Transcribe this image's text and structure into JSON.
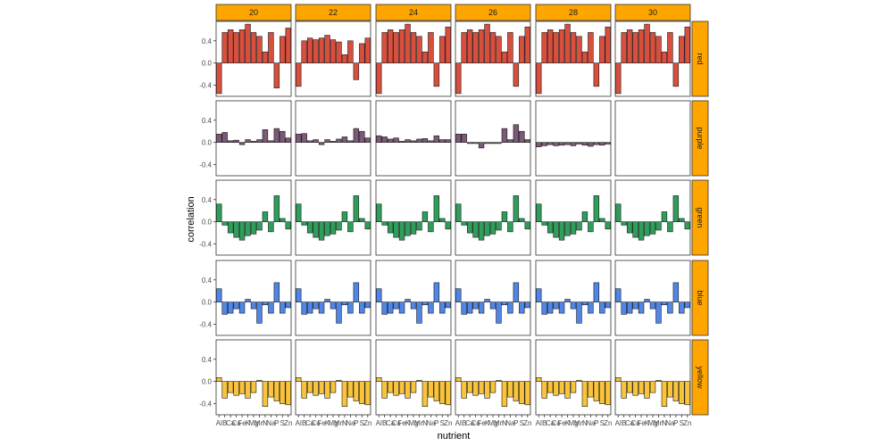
{
  "chart_data": {
    "type": "bar",
    "xlabel": "nutrient",
    "ylabel": "correlation",
    "ylim": [
      -0.6,
      0.75
    ],
    "yticks": [
      -0.4,
      0.0,
      0.4
    ],
    "ytick_labels": [
      "-0.4",
      "0.0",
      "0.4"
    ],
    "categories": [
      "Al",
      "B",
      "Ca",
      "Cu",
      "Fe",
      "K",
      "Mg",
      "Mn",
      "N",
      "Na",
      "P",
      "S",
      "Zn"
    ],
    "xtick_labels": [
      "Al",
      "B",
      "Ca",
      "Cu",
      "Fe",
      "K",
      "Mg",
      "Mn",
      "N",
      "Na",
      "P",
      "S",
      "Zn"
    ],
    "column_facets": [
      "20",
      "22",
      "24",
      "26",
      "28",
      "30"
    ],
    "row_facets": [
      "red",
      "purple",
      "green",
      "blue",
      "yellow"
    ],
    "strip_color": "#FFA500",
    "series_colors": {
      "red": "#D94F3D",
      "purple": "#7B5A78",
      "green": "#2E9E5B",
      "blue": "#4F86E8",
      "yellow": "#F9C33B"
    },
    "panels": {
      "red": {
        "20": [
          -0.55,
          0.55,
          0.6,
          0.55,
          0.6,
          0.7,
          0.55,
          0.48,
          0.2,
          0.55,
          -0.45,
          0.48,
          0.63
        ],
        "22": [
          -0.42,
          0.4,
          0.45,
          0.42,
          0.45,
          0.5,
          0.42,
          0.38,
          0.15,
          0.4,
          -0.3,
          0.35,
          0.45
        ],
        "24": [
          -0.55,
          0.55,
          0.6,
          0.55,
          0.6,
          0.7,
          0.55,
          0.48,
          0.2,
          0.55,
          -0.42,
          0.48,
          0.65
        ],
        "26": [
          -0.55,
          0.55,
          0.6,
          0.55,
          0.6,
          0.7,
          0.55,
          0.48,
          0.2,
          0.55,
          -0.42,
          0.48,
          0.65
        ],
        "28": [
          -0.55,
          0.55,
          0.6,
          0.55,
          0.6,
          0.7,
          0.55,
          0.48,
          0.2,
          0.55,
          -0.42,
          0.48,
          0.65
        ],
        "30": [
          -0.55,
          0.55,
          0.6,
          0.55,
          0.6,
          0.7,
          0.55,
          0.48,
          0.2,
          0.55,
          -0.42,
          0.48,
          0.65
        ]
      },
      "purple": {
        "20": [
          0.15,
          0.18,
          0.03,
          0.04,
          -0.04,
          0.05,
          0.02,
          0.05,
          0.23,
          0.03,
          0.25,
          0.2,
          0.08
        ],
        "22": [
          0.15,
          0.16,
          0.03,
          0.05,
          -0.04,
          0.05,
          0.02,
          0.06,
          0.1,
          0.03,
          0.25,
          0.2,
          0.08
        ],
        "24": [
          0.12,
          0.1,
          0.06,
          0.08,
          0.02,
          0.05,
          0.03,
          0.06,
          0.07,
          0.03,
          0.12,
          0.05,
          0.05
        ],
        "26": [
          0.15,
          0.15,
          -0.02,
          -0.02,
          -0.1,
          -0.02,
          -0.02,
          -0.02,
          0.25,
          0.05,
          0.32,
          0.2,
          0.05
        ],
        "28": [
          -0.08,
          -0.06,
          -0.04,
          -0.06,
          -0.05,
          -0.04,
          -0.06,
          -0.03,
          -0.05,
          -0.07,
          -0.04,
          -0.05,
          -0.03
        ],
        "30": []
      },
      "green": {
        "20": [
          0.32,
          -0.06,
          -0.2,
          -0.28,
          -0.33,
          -0.25,
          -0.22,
          -0.15,
          0.18,
          -0.18,
          0.47,
          0.06,
          -0.13
        ],
        "22": [
          0.32,
          -0.06,
          -0.2,
          -0.28,
          -0.33,
          -0.25,
          -0.22,
          -0.15,
          0.18,
          -0.18,
          0.47,
          0.06,
          -0.13
        ],
        "24": [
          0.32,
          -0.06,
          -0.2,
          -0.28,
          -0.33,
          -0.25,
          -0.22,
          -0.15,
          0.18,
          -0.18,
          0.47,
          0.06,
          -0.13
        ],
        "26": [
          0.32,
          -0.06,
          -0.2,
          -0.28,
          -0.33,
          -0.25,
          -0.22,
          -0.15,
          0.18,
          -0.18,
          0.47,
          0.06,
          -0.13
        ],
        "28": [
          0.32,
          -0.06,
          -0.2,
          -0.28,
          -0.33,
          -0.25,
          -0.22,
          -0.15,
          0.18,
          -0.18,
          0.47,
          0.06,
          -0.13
        ],
        "30": [
          0.32,
          -0.06,
          -0.2,
          -0.28,
          -0.33,
          -0.25,
          -0.22,
          -0.15,
          0.18,
          -0.18,
          0.47,
          0.06,
          -0.13
        ]
      },
      "blue": {
        "20": [
          0.24,
          -0.22,
          -0.2,
          -0.12,
          -0.2,
          0.05,
          -0.12,
          -0.38,
          -0.05,
          -0.2,
          0.35,
          -0.2,
          -0.1
        ],
        "22": [
          0.24,
          -0.22,
          -0.2,
          -0.12,
          -0.2,
          0.05,
          -0.12,
          -0.38,
          -0.05,
          -0.2,
          0.35,
          -0.2,
          -0.1
        ],
        "24": [
          0.24,
          -0.22,
          -0.2,
          -0.12,
          -0.2,
          0.05,
          -0.12,
          -0.38,
          -0.05,
          -0.2,
          0.35,
          -0.2,
          -0.1
        ],
        "26": [
          0.24,
          -0.22,
          -0.2,
          -0.12,
          -0.2,
          0.05,
          -0.12,
          -0.38,
          -0.05,
          -0.2,
          0.35,
          -0.2,
          -0.1
        ],
        "28": [
          0.24,
          -0.22,
          -0.2,
          -0.12,
          -0.2,
          0.05,
          -0.12,
          -0.38,
          -0.05,
          -0.2,
          0.35,
          -0.2,
          -0.1
        ],
        "30": [
          0.24,
          -0.22,
          -0.2,
          -0.12,
          -0.2,
          0.05,
          -0.12,
          -0.38,
          -0.05,
          -0.2,
          0.35,
          -0.2,
          -0.1
        ]
      },
      "yellow": {
        "20": [
          0.07,
          -0.3,
          -0.2,
          -0.25,
          -0.22,
          -0.3,
          -0.2,
          0.02,
          -0.45,
          -0.28,
          -0.35,
          -0.4,
          -0.42
        ],
        "22": [
          0.07,
          -0.3,
          -0.2,
          -0.25,
          -0.22,
          -0.3,
          -0.2,
          0.02,
          -0.45,
          -0.28,
          -0.35,
          -0.4,
          -0.42
        ],
        "24": [
          0.07,
          -0.3,
          -0.2,
          -0.25,
          -0.22,
          -0.3,
          -0.2,
          0.02,
          -0.45,
          -0.28,
          -0.35,
          -0.4,
          -0.42
        ],
        "26": [
          0.07,
          -0.3,
          -0.2,
          -0.25,
          -0.22,
          -0.3,
          -0.2,
          0.02,
          -0.45,
          -0.28,
          -0.35,
          -0.4,
          -0.42
        ],
        "28": [
          0.07,
          -0.3,
          -0.2,
          -0.25,
          -0.22,
          -0.3,
          -0.2,
          0.02,
          -0.45,
          -0.28,
          -0.35,
          -0.4,
          -0.42
        ],
        "30": [
          0.07,
          -0.3,
          -0.2,
          -0.25,
          -0.22,
          -0.3,
          -0.2,
          0.02,
          -0.45,
          -0.28,
          -0.35,
          -0.4,
          -0.42
        ]
      }
    },
    "grid": false,
    "legend": "none"
  }
}
